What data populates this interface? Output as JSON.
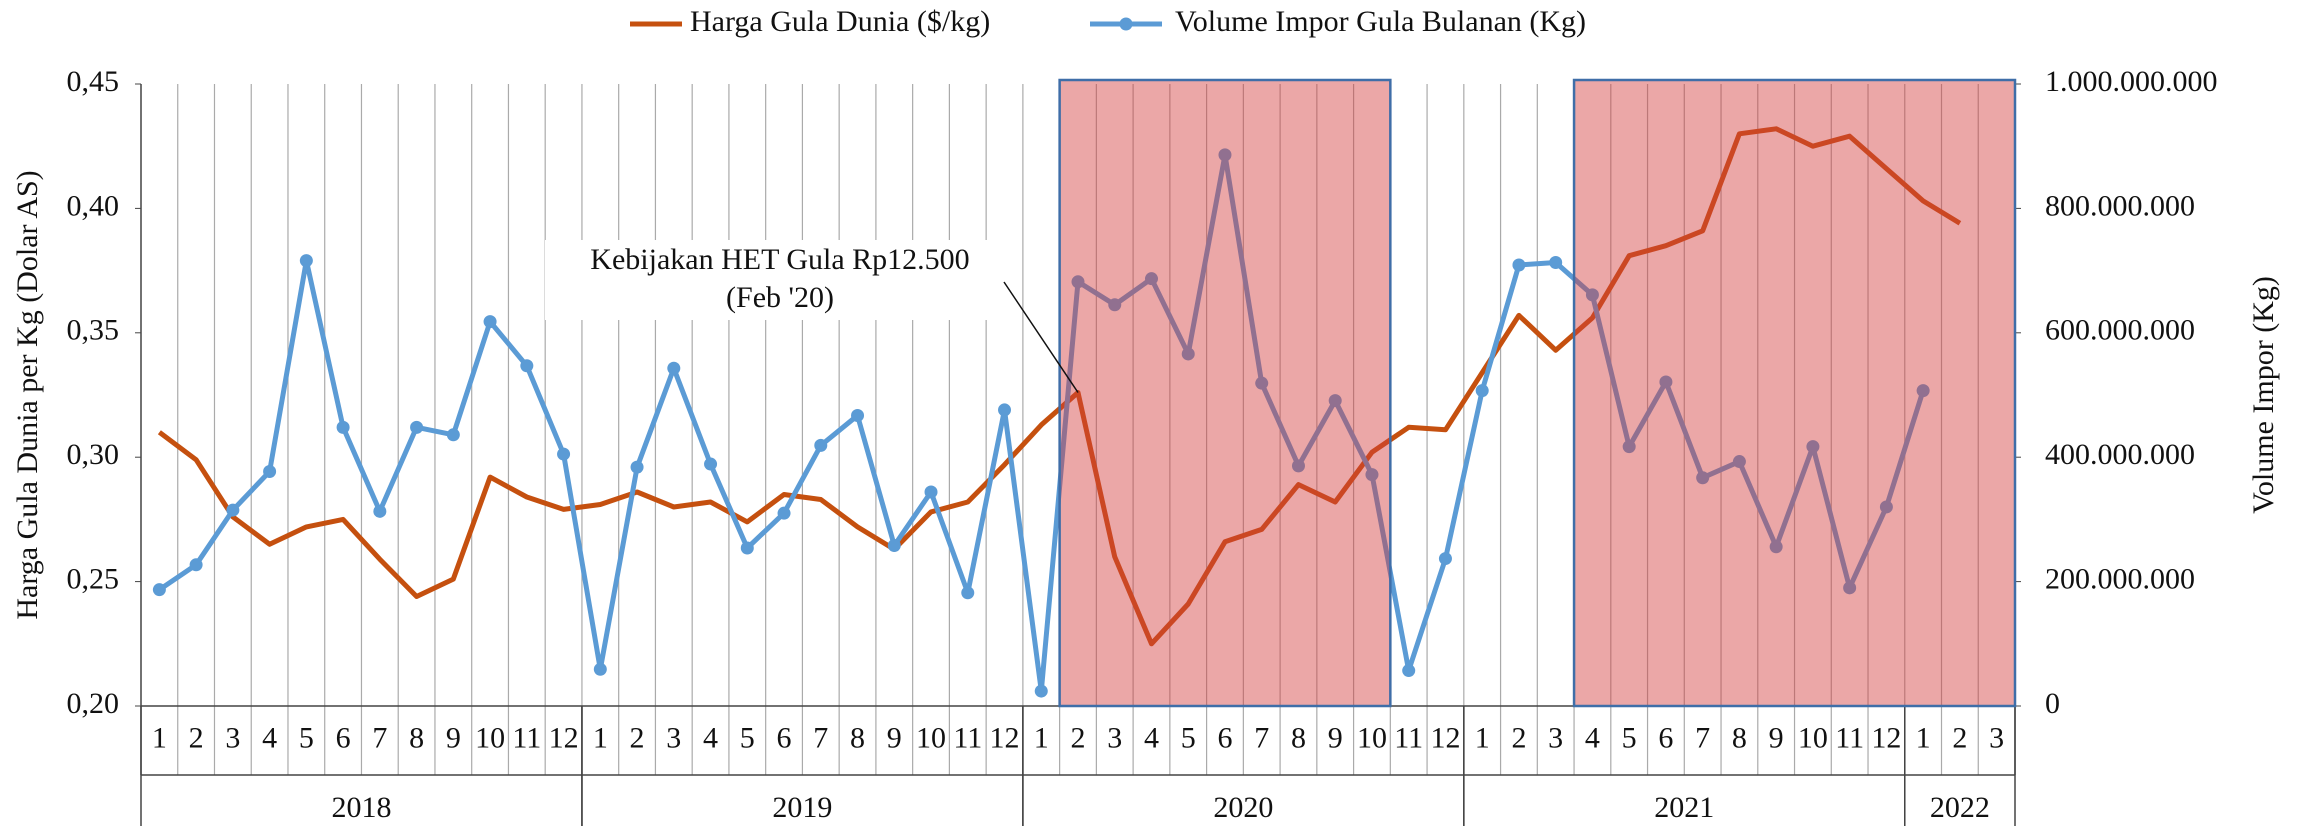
{
  "chart_data": {
    "type": "line",
    "categories": [
      "1",
      "2",
      "3",
      "4",
      "5",
      "6",
      "7",
      "8",
      "9",
      "10",
      "11",
      "12",
      "1",
      "2",
      "3",
      "4",
      "5",
      "6",
      "7",
      "8",
      "9",
      "10",
      "11",
      "12",
      "1",
      "2",
      "3",
      "4",
      "5",
      "6",
      "7",
      "8",
      "9",
      "10",
      "11",
      "12",
      "1",
      "2",
      "3",
      "4",
      "5",
      "6",
      "7",
      "8",
      "9",
      "10",
      "11",
      "12",
      "1",
      "2",
      "3"
    ],
    "years": [
      {
        "label": "2018",
        "months": 12
      },
      {
        "label": "2019",
        "months": 12
      },
      {
        "label": "2020",
        "months": 12
      },
      {
        "label": "2021",
        "months": 12
      },
      {
        "label": "2022",
        "months": 3
      }
    ],
    "series": [
      {
        "name": "Harga Gula Dunia ($/kg)",
        "color": "#c5500f",
        "axis": "y",
        "values": [
          0.31,
          0.299,
          0.276,
          0.265,
          0.272,
          0.275,
          0.259,
          0.244,
          0.251,
          0.292,
          0.284,
          0.279,
          0.281,
          0.286,
          0.28,
          0.282,
          0.274,
          0.285,
          0.283,
          0.272,
          0.263,
          0.278,
          0.282,
          0.297,
          0.313,
          0.326,
          0.26,
          0.225,
          0.241,
          0.266,
          0.271,
          0.289,
          0.282,
          0.302,
          0.312,
          0.311,
          0.334,
          0.357,
          0.343,
          0.356,
          0.381,
          0.385,
          0.391,
          0.43,
          0.432,
          0.425,
          0.429,
          0.416,
          0.403,
          0.394,
          null
        ]
      },
      {
        "name": "Volume Impor Gula Bulanan (Kg)",
        "color": "#5b9bd5",
        "axis": "y2",
        "values": [
          187000000,
          227000000,
          315000000,
          377000000,
          716000000,
          448000000,
          313000000,
          448000000,
          436000000,
          618000000,
          547000000,
          405000000,
          59000000,
          384000000,
          543000000,
          389000000,
          254000000,
          310000000,
          419000000,
          467000000,
          258000000,
          344000000,
          182000000,
          476000000,
          24000000,
          682000000,
          645000000,
          687000000,
          566000000,
          886000000,
          519000000,
          386000000,
          491000000,
          372000000,
          57000000,
          237000000,
          507000000,
          709000000,
          713000000,
          661000000,
          417000000,
          521000000,
          367000000,
          393000000,
          256000000,
          417000000,
          190000000,
          320000000,
          507000000,
          null,
          null
        ]
      }
    ],
    "ylabel": "Harga Gula Dunia per Kg (Dolar AS)",
    "y2label": "Volume Impor (Kg)",
    "ylim": [
      0.2,
      0.45
    ],
    "yticks": [
      {
        "value": 0.2,
        "label": "0,20"
      },
      {
        "value": 0.25,
        "label": "0,25"
      },
      {
        "value": 0.3,
        "label": "0,30"
      },
      {
        "value": 0.35,
        "label": "0,35"
      },
      {
        "value": 0.4,
        "label": "0,40"
      },
      {
        "value": 0.45,
        "label": "0,45"
      }
    ],
    "y2lim": [
      0,
      1000000000
    ],
    "y2ticks": [
      0,
      {
        "value": 200000000,
        "label": "200.000.000"
      },
      {
        "value": 400000000,
        "label": "400.000.000"
      },
      {
        "value": 600000000,
        "label": "600.000.000"
      },
      {
        "value": 800000000,
        "label": "800.000.000"
      },
      {
        "value": 1000000000,
        "label": "1.000.000.000"
      }
    ],
    "shaded": [
      {
        "from": 25,
        "to": 33
      },
      {
        "from": 39,
        "to": 50
      }
    ],
    "annotation": {
      "lines": [
        "Kebijakan HET Gula Rp12.500",
        "(Feb '20)"
      ],
      "index": 25
    },
    "legend": "top"
  }
}
